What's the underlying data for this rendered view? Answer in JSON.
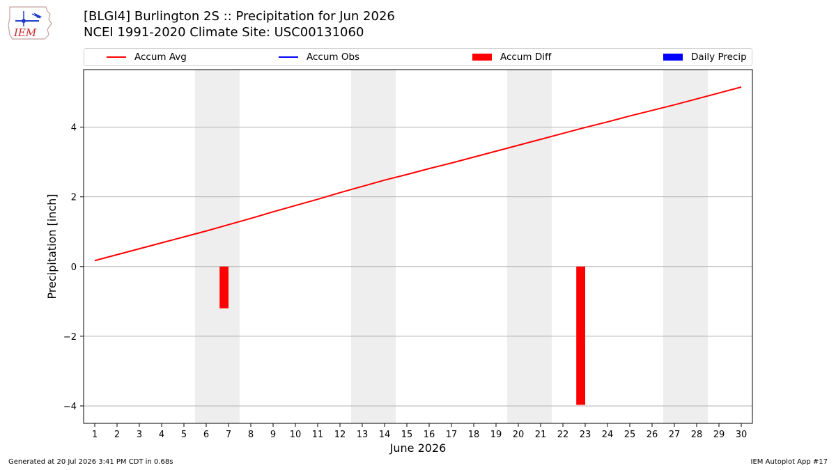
{
  "header": {
    "title_line1": "[BLGI4] Burlington 2S :: Precipitation for Jun 2026",
    "title_line2": "NCEI 1991-2020 Climate Site: USC00131060"
  },
  "logo": {
    "text": "IEM"
  },
  "footer": {
    "generated": "Generated at 20 Jul 2026 3:41 PM CDT in 0.68s",
    "app": "IEM Autoplot App #17"
  },
  "colors": {
    "accum_avg": "#ff0000",
    "accum_obs": "#0000ff",
    "accum_diff": "#ff0000",
    "daily_precip": "#0000ff",
    "weekend_shade": "#eeeeee",
    "grid": "#b0b0b0"
  },
  "chart_data": {
    "type": "line",
    "xlabel": "June 2026",
    "ylabel": "Precipitation [inch]",
    "xlim": [
      0.5,
      30.5
    ],
    "ylim": [
      -4.5,
      5.65
    ],
    "x_ticks": [
      1,
      2,
      3,
      4,
      5,
      6,
      7,
      8,
      9,
      10,
      11,
      12,
      13,
      14,
      15,
      16,
      17,
      18,
      19,
      20,
      21,
      22,
      23,
      24,
      25,
      26,
      27,
      28,
      29,
      30
    ],
    "y_ticks": [
      -4,
      -2,
      0,
      2,
      4
    ],
    "y_tick_labels": [
      "−4",
      "−2",
      "0",
      "2",
      "4"
    ],
    "grid": "horizontal",
    "legend": {
      "placement": "top",
      "entries": [
        {
          "name": "Accum Avg",
          "kind": "line",
          "color": "#ff0000"
        },
        {
          "name": "Accum Obs",
          "kind": "line",
          "color": "#0000ff"
        },
        {
          "name": "Accum Diff",
          "kind": "patch",
          "color": "#ff0000"
        },
        {
          "name": "Daily Precip",
          "kind": "patch",
          "color": "#0000ff"
        }
      ]
    },
    "weekend_spans": [
      [
        6,
        7
      ],
      [
        13,
        14
      ],
      [
        20,
        21
      ],
      [
        27,
        28
      ]
    ],
    "series": [
      {
        "name": "Accum Avg",
        "type": "line",
        "x": [
          1,
          2,
          3,
          4,
          5,
          6,
          7,
          8,
          9,
          10,
          11,
          12,
          13,
          14,
          15,
          16,
          17,
          18,
          19,
          20,
          21,
          22,
          23,
          24,
          25,
          26,
          27,
          28,
          29,
          30
        ],
        "values": [
          0.17,
          0.34,
          0.51,
          0.68,
          0.85,
          1.02,
          1.2,
          1.38,
          1.57,
          1.75,
          1.93,
          2.12,
          2.3,
          2.48,
          2.64,
          2.81,
          2.97,
          3.14,
          3.31,
          3.48,
          3.65,
          3.82,
          3.99,
          4.15,
          4.32,
          4.48,
          4.64,
          4.81,
          4.98,
          5.15
        ]
      },
      {
        "name": "Accum Diff",
        "type": "bar",
        "x": [
          7,
          23
        ],
        "values": [
          -1.2,
          -3.97
        ]
      }
    ]
  }
}
